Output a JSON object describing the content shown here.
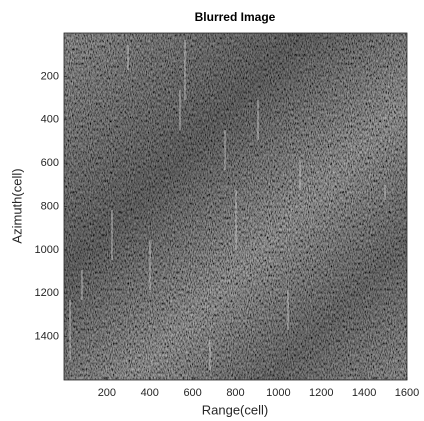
{
  "chart_data": {
    "type": "image",
    "title": "Blurred Image",
    "x_label": "Range(cell)",
    "y_label": "Azimuth(cell)",
    "xlim": [
      0,
      1600
    ],
    "xticks": [
      200,
      400,
      600,
      800,
      1000,
      1200,
      1400,
      1600
    ],
    "ylim": [
      0,
      1600
    ],
    "yticks": [
      200,
      400,
      600,
      800,
      1000,
      1200,
      1400
    ],
    "y_reversed": true
  }
}
